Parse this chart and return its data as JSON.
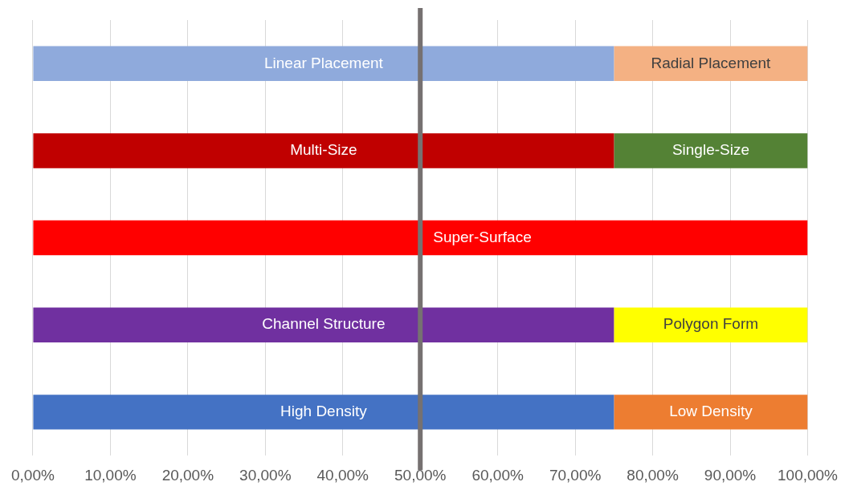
{
  "chart_data": {
    "type": "bar",
    "orientation": "horizontal",
    "stacked": true,
    "categories": [
      null,
      null,
      null,
      null,
      null
    ],
    "series": [
      {
        "colors": [
          "#8faadc",
          "#c00000",
          "#ff0000",
          "#7030a0",
          "#4472c4"
        ],
        "values": [
          75,
          75,
          100,
          75,
          75
        ],
        "value_labels": [
          "Linear Placement",
          "Multi-Size",
          "Super-Surface",
          "Channel Structure",
          "High Density"
        ]
      },
      {
        "colors": [
          "#f4b183",
          "#548235",
          null,
          "#ffff00",
          "#ed7d31"
        ],
        "values": [
          25,
          25,
          null,
          25,
          25
        ],
        "value_labels": [
          "Radial Placement",
          "Single-Size",
          null,
          "Polygon Form",
          "Low Density"
        ]
      }
    ],
    "xlim": [
      0,
      100
    ],
    "xticks": [
      {
        "value": 0,
        "label": "0,00%"
      },
      {
        "value": 10,
        "label": "10,00%"
      },
      {
        "value": 20,
        "label": "20,00%"
      },
      {
        "value": 30,
        "label": "30,00%"
      },
      {
        "value": 40,
        "label": "40,00%"
      },
      {
        "value": 50,
        "label": "50,00%"
      },
      {
        "value": 60,
        "label": "60,00%"
      },
      {
        "value": 70,
        "label": "70,00%"
      },
      {
        "value": 80,
        "label": "80,00%"
      },
      {
        "value": 90,
        "label": "90,00%"
      },
      {
        "value": 100,
        "label": "100,00%"
      }
    ],
    "grid": "x",
    "ref_lines": [
      {
        "axis": "x",
        "value": 50,
        "color": "#767171"
      }
    ]
  }
}
